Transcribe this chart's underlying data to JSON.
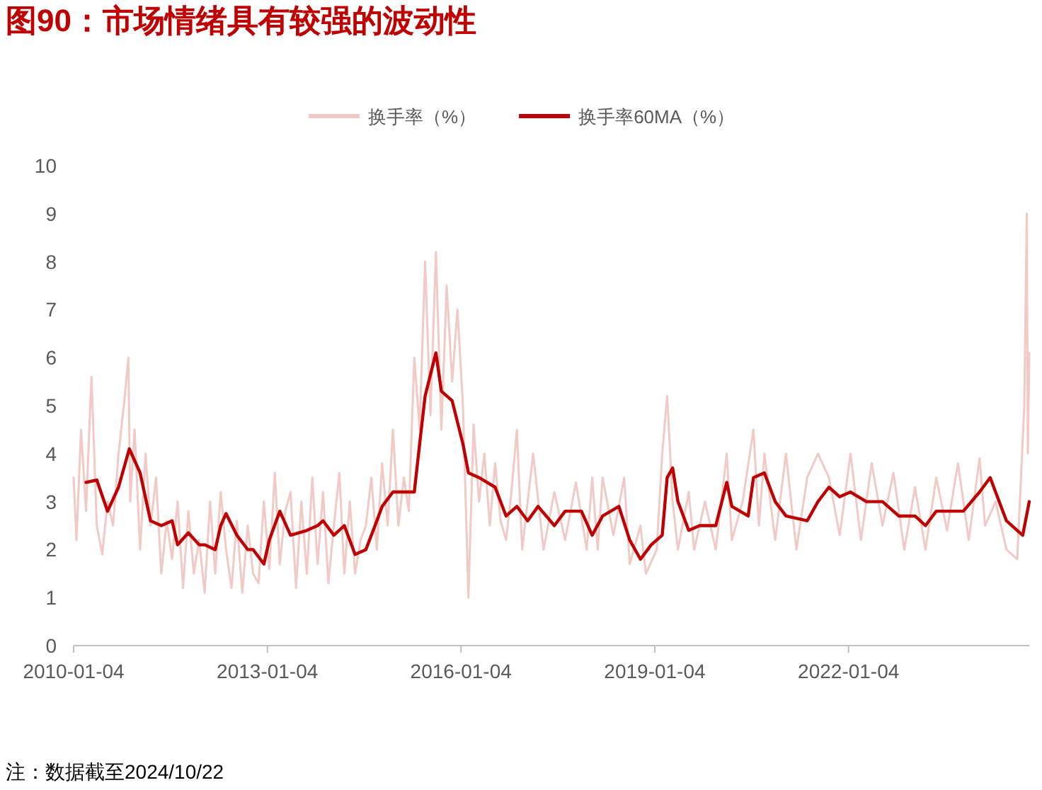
{
  "chart_data": {
    "type": "line",
    "title": "图90：市场情绪具有较强的波动性",
    "annotations": [
      "注：数据截至2024/10/22"
    ],
    "xlim": [
      "2010-01-04",
      "2024-10-22"
    ],
    "xticks": [
      "2010-01-04",
      "2013-01-04",
      "2016-01-04",
      "2019-01-04",
      "2022-01-04"
    ],
    "ylim": [
      0,
      10
    ],
    "yticks": [
      0,
      1,
      2,
      3,
      4,
      5,
      6,
      7,
      8,
      9,
      10
    ],
    "grid": false,
    "legend": "top",
    "marker": "none",
    "line_style": "solid",
    "series": [
      {
        "name": "换手率（%）",
        "color": "#f2c9c4",
        "x": [
          "2010-01-04",
          "2010-01-20",
          "2010-02-15",
          "2010-03-15",
          "2010-04-15",
          "2010-05-15",
          "2010-06-15",
          "2010-07-15",
          "2010-08-15",
          "2010-09-15",
          "2010-10-15",
          "2010-11-10",
          "2010-11-20",
          "2010-12-15",
          "2011-01-15",
          "2011-02-15",
          "2011-03-15",
          "2011-04-15",
          "2011-05-15",
          "2011-06-15",
          "2011-07-15",
          "2011-08-15",
          "2011-09-15",
          "2011-10-15",
          "2011-11-15",
          "2011-12-15",
          "2012-01-15",
          "2012-02-15",
          "2012-03-15",
          "2012-04-15",
          "2012-05-15",
          "2012-06-15",
          "2012-07-15",
          "2012-08-15",
          "2012-09-15",
          "2012-10-15",
          "2012-11-15",
          "2012-12-15",
          "2013-01-15",
          "2013-02-15",
          "2013-03-15",
          "2013-04-15",
          "2013-05-15",
          "2013-06-15",
          "2013-07-15",
          "2013-08-15",
          "2013-09-15",
          "2013-10-15",
          "2013-11-15",
          "2013-12-15",
          "2014-01-15",
          "2014-02-15",
          "2014-03-15",
          "2014-04-15",
          "2014-05-15",
          "2014-06-15",
          "2014-07-15",
          "2014-08-15",
          "2014-09-15",
          "2014-10-15",
          "2014-11-15",
          "2014-12-15",
          "2015-01-15",
          "2015-02-15",
          "2015-03-15",
          "2015-04-15",
          "2015-05-15",
          "2015-06-15",
          "2015-07-15",
          "2015-08-15",
          "2015-09-15",
          "2015-10-15",
          "2015-11-15",
          "2015-12-15",
          "2016-01-15",
          "2016-02-15",
          "2016-03-15",
          "2016-04-15",
          "2016-05-15",
          "2016-06-15",
          "2016-07-15",
          "2016-08-15",
          "2016-09-15",
          "2016-10-15",
          "2016-11-15",
          "2016-12-15",
          "2017-01-15",
          "2017-02-15",
          "2017-04-15",
          "2017-06-15",
          "2017-08-15",
          "2017-10-15",
          "2017-12-15",
          "2018-01-15",
          "2018-02-15",
          "2018-03-15",
          "2018-05-15",
          "2018-07-15",
          "2018-08-15",
          "2018-10-15",
          "2018-11-15",
          "2019-01-15",
          "2019-02-15",
          "2019-03-15",
          "2019-04-15",
          "2019-05-15",
          "2019-07-15",
          "2019-08-15",
          "2019-10-15",
          "2019-12-15",
          "2020-02-15",
          "2020-03-15",
          "2020-05-15",
          "2020-07-15",
          "2020-08-15",
          "2020-09-15",
          "2020-11-15",
          "2021-01-15",
          "2021-03-15",
          "2021-05-15",
          "2021-07-15",
          "2021-09-15",
          "2021-11-15",
          "2022-01-15",
          "2022-03-15",
          "2022-05-15",
          "2022-07-15",
          "2022-09-15",
          "2022-11-15",
          "2023-01-15",
          "2023-03-15",
          "2023-05-15",
          "2023-07-15",
          "2023-09-15",
          "2023-11-15",
          "2024-01-15",
          "2024-02-15",
          "2024-04-15",
          "2024-06-15",
          "2024-08-15",
          "2024-09-24",
          "2024-10-08",
          "2024-10-14",
          "2024-10-22"
        ],
        "values": [
          3.5,
          2.2,
          4.5,
          2.8,
          5.6,
          2.5,
          1.9,
          3.0,
          2.5,
          4.0,
          5.0,
          6.0,
          3.0,
          4.5,
          2.0,
          4.0,
          2.5,
          3.5,
          1.5,
          2.6,
          1.8,
          3.0,
          1.2,
          2.8,
          1.5,
          2.2,
          1.1,
          3.0,
          1.5,
          3.2,
          2.0,
          1.2,
          2.6,
          1.1,
          2.5,
          1.5,
          1.3,
          3.0,
          1.6,
          3.6,
          1.7,
          2.8,
          3.2,
          1.2,
          3.0,
          1.5,
          3.5,
          1.7,
          3.2,
          1.3,
          2.5,
          3.6,
          1.5,
          3.0,
          1.5,
          2.2,
          2.5,
          3.5,
          2.0,
          3.8,
          2.5,
          4.5,
          2.5,
          3.5,
          2.8,
          6.0,
          4.5,
          8.0,
          4.8,
          8.2,
          4.5,
          7.5,
          5.5,
          7.0,
          5.0,
          1.0,
          4.6,
          3.0,
          4.0,
          2.5,
          3.8,
          2.6,
          2.2,
          3.2,
          4.5,
          2.0,
          3.0,
          4.0,
          2.0,
          3.2,
          2.2,
          3.4,
          2.0,
          3.5,
          2.0,
          3.5,
          2.3,
          3.5,
          1.7,
          2.5,
          1.5,
          2.0,
          4.0,
          5.2,
          3.0,
          2.0,
          3.2,
          2.0,
          3.0,
          2.0,
          4.0,
          2.2,
          3.0,
          4.5,
          2.5,
          4.0,
          2.2,
          4.0,
          2.0,
          3.5,
          4.0,
          3.5,
          2.3,
          4.0,
          2.2,
          3.8,
          2.5,
          3.6,
          2.0,
          3.3,
          2.0,
          3.5,
          2.4,
          3.8,
          2.2,
          3.9,
          2.5,
          3.0,
          2.0,
          1.8,
          5.0,
          9.0,
          4.0,
          6.1
        ]
      },
      {
        "name": "换手率60MA（%）",
        "color": "#c00000",
        "x": [
          "2010-03-15",
          "2010-05-15",
          "2010-07-15",
          "2010-09-15",
          "2010-11-15",
          "2011-01-15",
          "2011-03-15",
          "2011-05-15",
          "2011-07-15",
          "2011-08-15",
          "2011-10-15",
          "2011-12-15",
          "2012-01-15",
          "2012-03-15",
          "2012-04-15",
          "2012-05-15",
          "2012-07-15",
          "2012-09-15",
          "2012-10-15",
          "2012-12-15",
          "2013-01-15",
          "2013-03-15",
          "2013-05-15",
          "2013-08-15",
          "2013-10-15",
          "2013-11-15",
          "2014-01-15",
          "2014-03-15",
          "2014-05-15",
          "2014-07-15",
          "2014-09-15",
          "2014-10-15",
          "2014-12-15",
          "2015-02-15",
          "2015-04-15",
          "2015-05-15",
          "2015-06-15",
          "2015-08-15",
          "2015-09-15",
          "2015-11-15",
          "2016-01-15",
          "2016-02-15",
          "2016-04-15",
          "2016-07-15",
          "2016-09-15",
          "2016-11-15",
          "2017-01-15",
          "2017-03-15",
          "2017-06-15",
          "2017-08-15",
          "2017-11-15",
          "2018-01-15",
          "2018-03-15",
          "2018-06-15",
          "2018-08-15",
          "2018-10-15",
          "2018-12-15",
          "2019-02-15",
          "2019-03-15",
          "2019-04-15",
          "2019-05-15",
          "2019-07-15",
          "2019-09-15",
          "2019-12-15",
          "2020-02-15",
          "2020-03-15",
          "2020-06-15",
          "2020-07-15",
          "2020-09-15",
          "2020-11-15",
          "2021-01-15",
          "2021-05-15",
          "2021-07-15",
          "2021-09-15",
          "2021-11-15",
          "2022-01-15",
          "2022-04-15",
          "2022-07-15",
          "2022-10-15",
          "2023-01-15",
          "2023-03-15",
          "2023-05-15",
          "2023-08-15",
          "2023-10-15",
          "2024-01-15",
          "2024-03-15",
          "2024-06-15",
          "2024-08-15",
          "2024-09-15",
          "2024-10-22"
        ],
        "values": [
          3.4,
          3.45,
          2.8,
          3.3,
          4.1,
          3.6,
          2.6,
          2.5,
          2.6,
          2.1,
          2.35,
          2.1,
          2.1,
          2.0,
          2.5,
          2.75,
          2.3,
          2.0,
          2.0,
          1.7,
          2.2,
          2.8,
          2.3,
          2.4,
          2.5,
          2.6,
          2.3,
          2.5,
          1.9,
          2.0,
          2.6,
          2.9,
          3.2,
          3.2,
          3.2,
          4.2,
          5.2,
          6.1,
          5.3,
          5.1,
          4.2,
          3.6,
          3.5,
          3.3,
          2.7,
          2.9,
          2.6,
          2.9,
          2.5,
          2.8,
          2.8,
          2.3,
          2.7,
          2.9,
          2.2,
          1.8,
          2.1,
          2.3,
          3.5,
          3.7,
          3.0,
          2.4,
          2.5,
          2.5,
          3.4,
          2.9,
          2.7,
          3.5,
          3.6,
          3.0,
          2.7,
          2.6,
          3.0,
          3.3,
          3.1,
          3.2,
          3.0,
          3.0,
          2.7,
          2.7,
          2.5,
          2.8,
          2.8,
          2.8,
          3.2,
          3.5,
          2.6,
          2.4,
          2.3,
          3.0
        ]
      }
    ]
  }
}
